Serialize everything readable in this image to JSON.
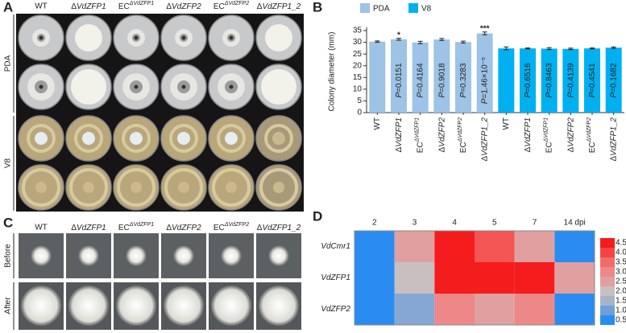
{
  "panels": {
    "a": "A",
    "b": "B",
    "c": "C",
    "d": "D"
  },
  "panel_a": {
    "columns": [
      "WT",
      "ΔVdZFP1",
      "ECΔVdZFP1",
      "ΔVdZFP2",
      "ECΔVdZFP2",
      "ΔVdZFP1_2"
    ],
    "rows": [
      "PDA",
      "V8"
    ]
  },
  "panel_c": {
    "columns": [
      "WT",
      "ΔVdZFP1",
      "ECΔVdZFP1",
      "ΔVdZFP2",
      "ECΔVdZFP2",
      "ΔVdZFP1_2"
    ],
    "rows": [
      "Before",
      "After"
    ]
  },
  "chart_data": [
    {
      "type": "bar",
      "ylabel": "Colony diameter (mm)",
      "categories": [
        "WT",
        "ΔVdZFP1",
        "ECΔVdZFP1",
        "ΔVdZFP2",
        "ECΔVdZFP2",
        "ΔVdZFP1_2",
        "WT",
        "ΔVdZFP1",
        "ECΔVdZFP1",
        "ΔVdZFP2",
        "ECΔVdZFP2",
        "ΔVdZFP1_2"
      ],
      "series": [
        {
          "name": "PDA",
          "color": "#9dc3e6",
          "values": [
            30.3,
            31.3,
            29.9,
            31.2,
            30.1,
            33.8,
            null,
            null,
            null,
            null,
            null,
            null
          ],
          "errors": [
            0.3,
            0.4,
            0.5,
            0.4,
            0.4,
            0.6,
            null,
            null,
            null,
            null,
            null,
            null
          ]
        },
        {
          "name": "V8",
          "color": "#00b0f0",
          "values": [
            null,
            null,
            null,
            null,
            null,
            null,
            27.4,
            27.4,
            27.3,
            27.2,
            27.4,
            27.7
          ],
          "errors": [
            null,
            null,
            null,
            null,
            null,
            null,
            0.6,
            0.2,
            0.4,
            0.3,
            0.2,
            0.3
          ]
        }
      ],
      "p_values": [
        null,
        "P=0.0151",
        "P=0.4164",
        "P=0.9018",
        "P=0.3283",
        "P=1.46×10⁻⁵",
        null,
        "P=0.6516",
        "P=0.8463",
        "P=0.4139",
        "P=0.4541",
        "P=0.1682"
      ],
      "significance": [
        null,
        "*",
        null,
        null,
        null,
        "***",
        null,
        null,
        null,
        null,
        null,
        null
      ],
      "ylim": [
        0,
        35
      ],
      "yticks": [
        0,
        5,
        10,
        15,
        20,
        25,
        30,
        35
      ]
    },
    {
      "type": "heatmap",
      "x": [
        "2",
        "3",
        "4",
        "5",
        "7",
        "14 dpi"
      ],
      "y": [
        "VdCmr1",
        "VdZFP1",
        "VdZFP2"
      ],
      "values": [
        [
          0.5,
          2.5,
          4.5,
          3.8,
          2.5,
          0.5
        ],
        [
          0.5,
          2.0,
          4.5,
          4.5,
          4.5,
          2.5
        ],
        [
          0.5,
          1.2,
          3.0,
          2.5,
          3.0,
          0.5
        ]
      ],
      "clim": [
        0.5,
        4.5
      ],
      "colorscale": [
        "#2a8cf0",
        "#6f9fd8",
        "#a7b4c8",
        "#c8c0c0",
        "#e0a0a0",
        "#ee8888",
        "#f26b6b",
        "#f44444",
        "#f41c1c"
      ],
      "colorbar_ticks": [
        0.5,
        {
          "value": 1,
          "label": "1.0"
        },
        1.5,
        {
          "value": 2,
          "label": "2.0"
        },
        2.5,
        {
          "value": 3,
          "label": "3.0"
        },
        3.5,
        {
          "value": 4,
          "label": "4.0"
        },
        4.5
      ]
    }
  ]
}
